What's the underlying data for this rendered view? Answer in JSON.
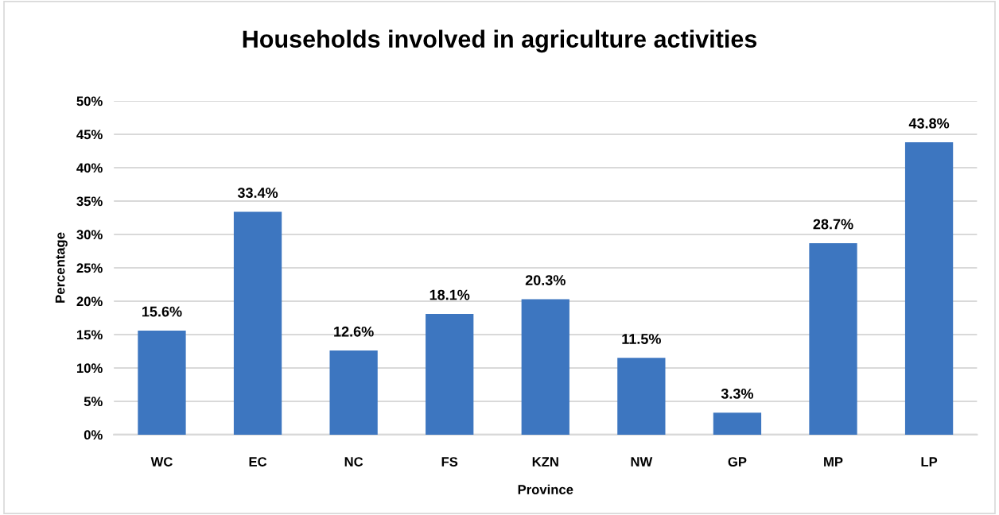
{
  "chart_data": {
    "type": "bar",
    "title": "Households involved in agriculture activities",
    "xlabel": "Province",
    "ylabel": "Percentage",
    "categories": [
      "WC",
      "EC",
      "NC",
      "FS",
      "KZN",
      "NW",
      "GP",
      "MP",
      "LP"
    ],
    "values": [
      15.6,
      33.4,
      12.6,
      18.1,
      20.3,
      11.5,
      3.3,
      28.7,
      43.8
    ],
    "color": "#3d76c0",
    "value_labels": [
      "15.6%",
      "33.4%",
      "12.6%",
      "18.1%",
      "20.3%",
      "11.5%",
      "3.3%",
      "28.7%",
      "43.8%"
    ],
    "ylim": [
      0,
      50
    ],
    "yticks": [
      {
        "value": 0,
        "label": "0%"
      },
      {
        "value": 5,
        "label": "5%"
      },
      {
        "value": 10,
        "label": "10%"
      },
      {
        "value": 15,
        "label": "15%"
      },
      {
        "value": 20,
        "label": "20%"
      },
      {
        "value": 25,
        "label": "25%"
      },
      {
        "value": 30,
        "label": "30%"
      },
      {
        "value": 35,
        "label": "35%"
      },
      {
        "value": 40,
        "label": "40%"
      },
      {
        "value": 45,
        "label": "45%"
      },
      {
        "value": 50,
        "label": "50%"
      }
    ],
    "grid": "y"
  }
}
